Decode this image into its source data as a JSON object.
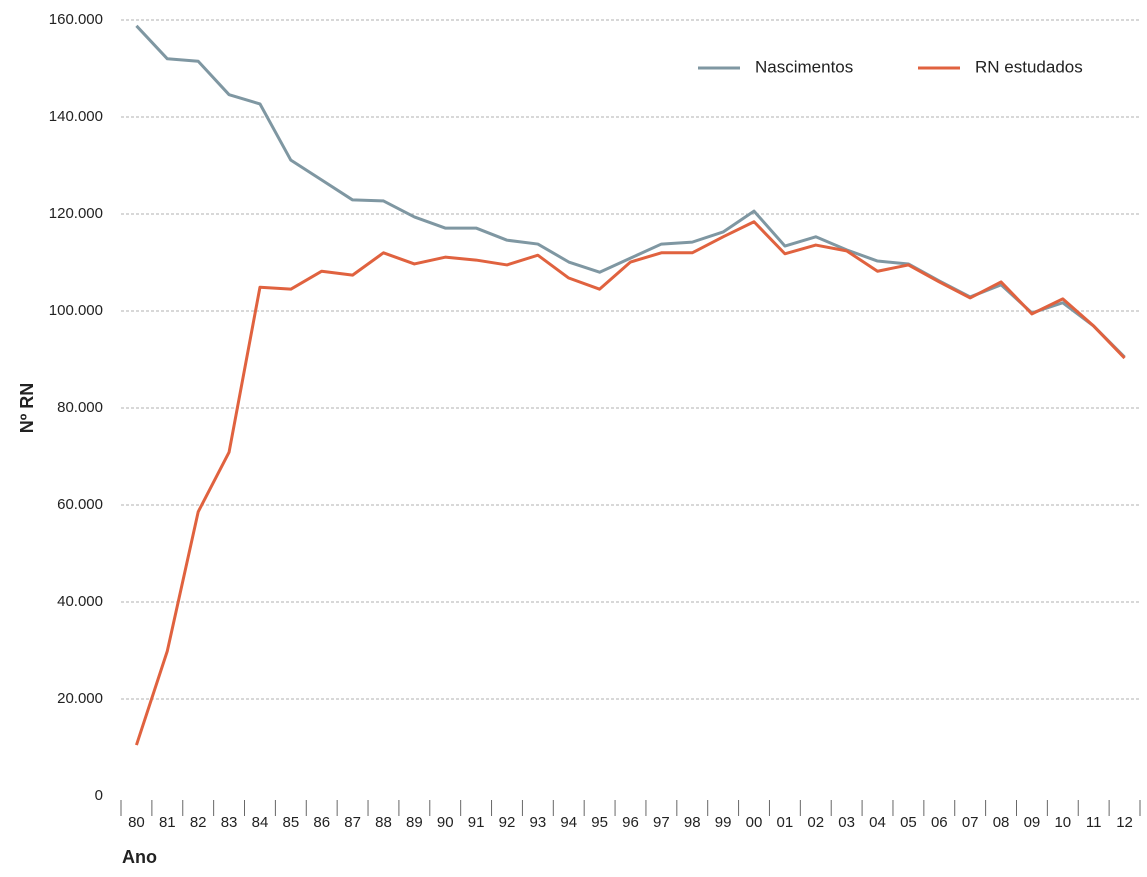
{
  "chart_data": {
    "type": "line",
    "x_label": "Ano",
    "y_label": "Nº RN",
    "categories": [
      "80",
      "81",
      "82",
      "83",
      "84",
      "85",
      "86",
      "87",
      "88",
      "89",
      "90",
      "91",
      "92",
      "93",
      "94",
      "95",
      "96",
      "97",
      "98",
      "99",
      "00",
      "01",
      "02",
      "03",
      "04",
      "05",
      "06",
      "07",
      "08",
      "09",
      "10",
      "11",
      "12"
    ],
    "series": [
      {
        "name": "Nascimentos",
        "color": "#7f97a2",
        "values": [
          158800,
          152000,
          151500,
          144600,
          142700,
          131100,
          127000,
          122900,
          122700,
          119400,
          117100,
          117100,
          114600,
          113800,
          110100,
          108000,
          110900,
          113800,
          114200,
          116300,
          120600,
          113400,
          115300,
          112600,
          110300,
          109700,
          106200,
          102900,
          105400,
          99600,
          101700,
          96900,
          90500
        ]
      },
      {
        "name": "RN estudados",
        "color": "#e0623f",
        "values": [
          10500,
          29900,
          58600,
          70900,
          104900,
          104500,
          108200,
          107400,
          112000,
          109700,
          111100,
          110500,
          109500,
          111500,
          106800,
          104500,
          110100,
          112000,
          112000,
          115300,
          118400,
          111800,
          113600,
          112400,
          108200,
          109500,
          106000,
          102700,
          106000,
          99400,
          102500,
          96900,
          90300
        ]
      }
    ],
    "ylim": [
      0,
      160000
    ],
    "yticks": [
      0,
      {
        "value": 20000,
        "label": "20.000"
      },
      {
        "value": 40000,
        "label": "40.000"
      },
      {
        "value": 60000,
        "label": "60.000"
      },
      {
        "value": 80000,
        "label": "80.000"
      },
      {
        "value": 100000,
        "label": "100.000"
      },
      {
        "value": 120000,
        "label": "120.000"
      },
      {
        "value": 140000,
        "label": "140.000"
      },
      {
        "value": 160000,
        "label": "160.000"
      }
    ],
    "grid": true,
    "legend": "top-right"
  }
}
